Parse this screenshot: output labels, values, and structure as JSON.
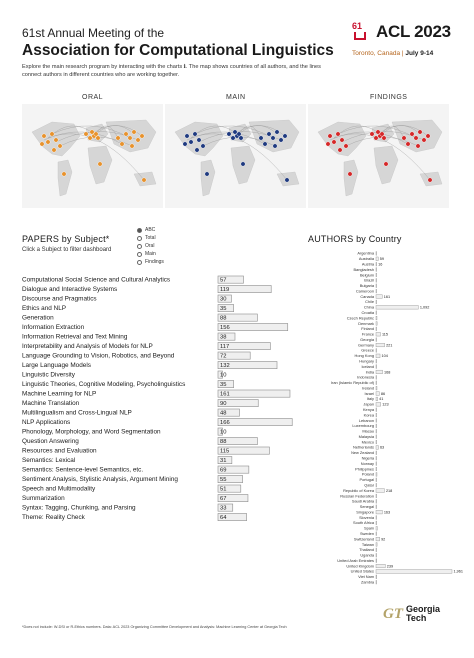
{
  "header": {
    "line1": "61st Annual Meeting of the",
    "line2": "Association for Computational Linguistics",
    "desc": "Explore the main research program by interacting with the charts ℹ. The map shows countries of all authors, and the lines connect authors in different countries who are working together."
  },
  "logo": {
    "number": "61",
    "name": "ACL 2023",
    "location": "Toronto, Canada",
    "separator": "|",
    "dates": "July 9-14"
  },
  "maps": {
    "labels": [
      "ORAL",
      "MAIN",
      "FINDINGS"
    ],
    "dot_colors": [
      "#e8922c",
      "#1f3a80",
      "#d62728"
    ]
  },
  "papers": {
    "title": "PAPERS by Subject*",
    "subtitle": "Click a Subject to filter dashboard",
    "sort_options": [
      "ABC",
      "Total",
      "Oral",
      "Main",
      "Findings"
    ],
    "sort_selected": "ABC"
  },
  "authors": {
    "title": "AUTHORS by Country"
  },
  "footer": {
    "note": "*Does not include: W-DSI or R-Ethics numbers.    Data: ACL 2023 Organizing Committee    Development and Analysis: Machine Learning Center at Georgia Tech",
    "gt_mark": "GT",
    "gt_line1": "Georgia",
    "gt_line2": "Tech"
  },
  "chart_data": [
    {
      "type": "bar",
      "orientation": "horizontal",
      "categories": [
        "Computational Social Science and Cultural Analytics",
        "Dialogue and Interactive Systems",
        "Discourse and Pragmatics",
        "Ethics and NLP",
        "Generation",
        "Information Extraction",
        "Information Retrieval and Text Mining",
        "Interpretability and Analysis of Models for NLP",
        "Language Grounding to Vision, Robotics, and Beyond",
        "Large Language Models",
        "Linguistic Diversity",
        "Linguistic Theories, Cognitive Modeling, Psycholinguistics",
        "Machine Learning for NLP",
        "Machine Translation",
        "Multilingualism and Cross-Lingual NLP",
        "NLP Applications",
        "Phonology, Morphology, and Word Segmentation",
        "Question Answering",
        "Resources and Evaluation",
        "Semantics: Lexical",
        "Semantics: Sentence-level Semantics, etc.",
        "Sentiment Analysis, Stylistic Analysis, Argument Mining",
        "Speech and Multimodality",
        "Summarization",
        "Syntax: Tagging, Chunking, and Parsing",
        "Theme: Reality Check"
      ],
      "values": [
        57,
        119,
        30,
        35,
        88,
        156,
        38,
        117,
        72,
        132,
        10,
        35,
        161,
        90,
        48,
        166,
        10,
        88,
        115,
        31,
        69,
        55,
        51,
        67,
        33,
        64
      ],
      "xlim": [
        0,
        170
      ]
    },
    {
      "type": "bar",
      "orientation": "horizontal",
      "categories": [
        "Argentina",
        "Australia",
        "Austria",
        "Bangladesh",
        "Belgium",
        "Brazil",
        "Bulgaria",
        "Cameroon",
        "Canada",
        "Chile",
        "China",
        "Croatia",
        "Czech Republic",
        "Denmark",
        "Finland",
        "France",
        "Georgia",
        "Germany",
        "Greece",
        "Hong Kong",
        "Hungary",
        "Iceland",
        "India",
        "Indonesia",
        "Iran (Islamic Republic of)",
        "Ireland",
        "Israel",
        "Italy",
        "Japan",
        "Kenya",
        "Korea",
        "Lebanon",
        "Luxembourg",
        "Macau",
        "Malaysia",
        "Mexico",
        "Netherlands",
        "New Zealand",
        "Nigeria",
        "Norway",
        "Philippines",
        "Poland",
        "Portugal",
        "Qatar",
        "Republic of Korea",
        "Russian Federation",
        "Saudi Arabia",
        "Senegal",
        "Singapore",
        "Slovenia",
        "South Africa",
        "Spain",
        "Sweden",
        "Switzerland",
        "Taiwan",
        "Thailand",
        "Uganda",
        "United Arab Emirates",
        "United Kingdom",
        "United States",
        "Viet Nam",
        "Zambia"
      ],
      "values": [
        1,
        59,
        16,
        10,
        12,
        3,
        1,
        5,
        161,
        3,
        1092,
        3,
        25,
        29,
        8,
        115,
        1,
        221,
        2,
        104,
        5,
        1,
        168,
        7,
        2,
        25,
        86,
        41,
        123,
        1,
        3,
        3,
        1,
        7,
        3,
        1,
        63,
        1,
        4,
        8,
        3,
        25,
        9,
        10,
        218,
        6,
        8,
        2,
        163,
        1,
        12,
        35,
        4,
        92,
        28,
        2,
        1,
        18,
        239,
        1961,
        18,
        1
      ],
      "value_labels": {
        "Australia": "59",
        "Austria": "16",
        "Canada": "161",
        "China": "1,092",
        "France": "115",
        "Germany": "221",
        "Hong Kong": "104",
        "India": "168",
        "Israel": "86",
        "Italy": "41",
        "Japan": "123",
        "Netherlands": "63",
        "Republic of Korea": "218",
        "Singapore": "163",
        "Switzerland": "92",
        "United Kingdom": "239",
        "United States": "1,961"
      },
      "xlim": [
        0,
        1961
      ]
    }
  ]
}
